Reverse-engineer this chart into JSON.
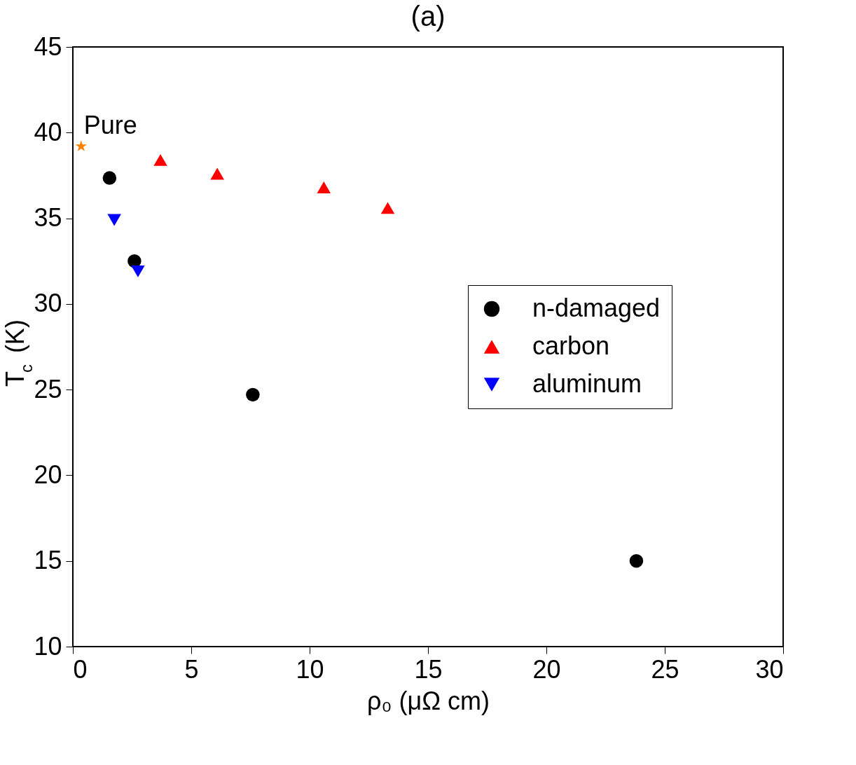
{
  "chart_data": {
    "type": "scatter",
    "title": "(a)",
    "xlabel": "ρ₀ (μΩ cm)",
    "ylabel": "T$_{c}$ (K)",
    "xlim": [
      0,
      30
    ],
    "xticks": [
      0,
      5,
      10,
      15,
      20,
      25,
      30
    ],
    "ylim": [
      10,
      45
    ],
    "yticks": [
      10,
      15,
      20,
      25,
      30,
      35,
      40,
      45
    ],
    "grid": false,
    "legend": "right",
    "series": [
      {
        "name": "n-damaged",
        "color": "#000000",
        "marker": "circle",
        "x": [
          1.55,
          2.6,
          7.6,
          23.8
        ],
        "values": [
          37.35,
          32.5,
          24.7,
          15.0
        ]
      },
      {
        "name": "carbon",
        "color": "#ff0000",
        "marker": "triangle",
        "x": [
          3.7,
          6.1,
          10.6,
          13.3
        ],
        "values": [
          38.4,
          37.6,
          36.8,
          35.6
        ]
      },
      {
        "name": "aluminum",
        "color": "#0000ff",
        "marker": "triangle_down",
        "x": [
          1.75,
          2.75
        ],
        "values": [
          34.9,
          31.9
        ]
      },
      {
        "color": "#ff8000",
        "marker": "star",
        "x": [
          0.35
        ],
        "values": [
          39.2
        ]
      }
    ],
    "annotations": [
      {
        "text": "Pure",
        "x": 0.35,
        "y": 39.2
      }
    ]
  }
}
